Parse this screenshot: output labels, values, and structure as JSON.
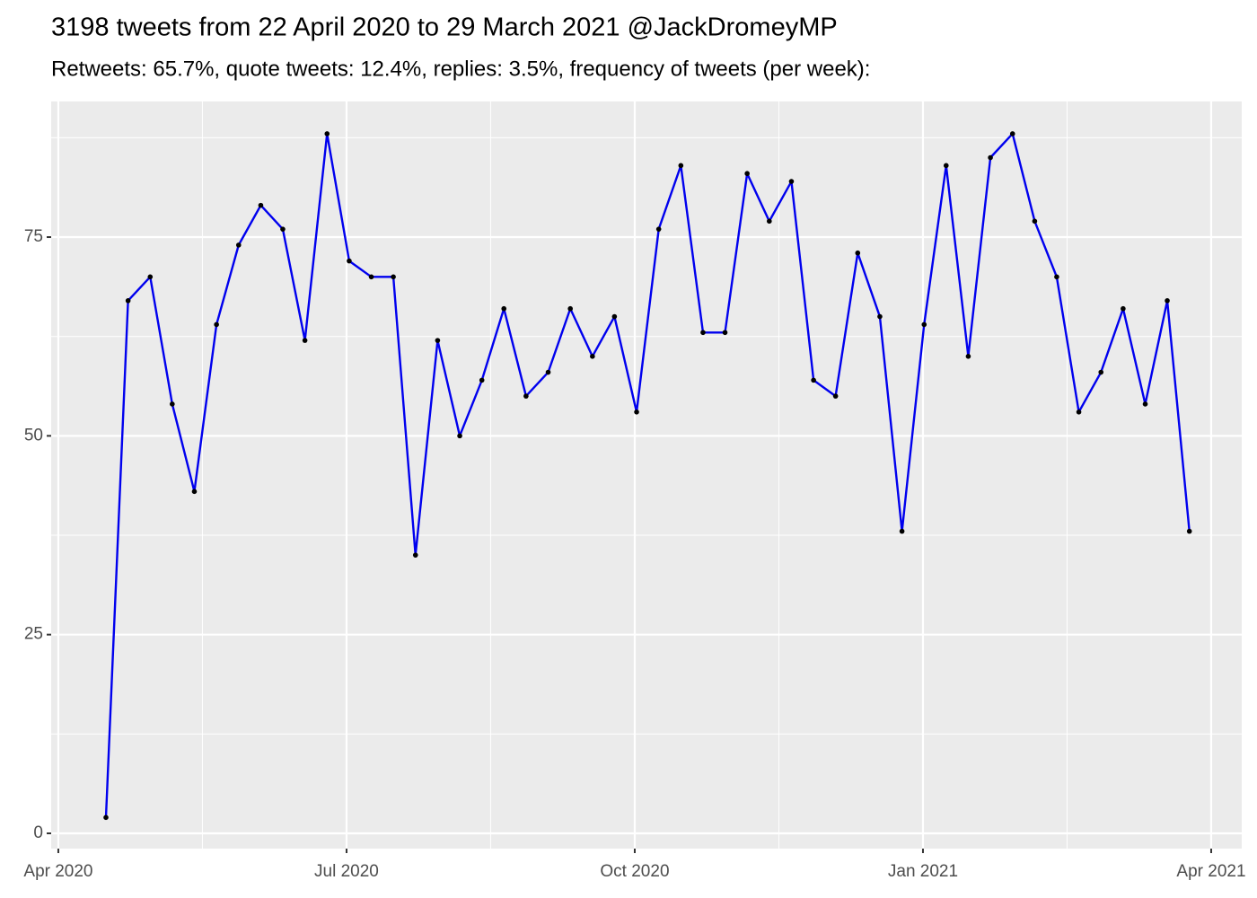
{
  "chart_data": {
    "type": "line",
    "title": "3198 tweets from 22 April 2020 to 29 March 2021 @JackDromeyMP",
    "subtitle": "Retweets: 65.7%, quote tweets: 12.4%, replies: 3.5%, frequency of tweets (per week):",
    "x": [
      2020.2913,
      2020.3105,
      2020.3297,
      2020.3488,
      2020.368,
      2020.3872,
      2020.4064,
      2020.4256,
      2020.4447,
      2020.4639,
      2020.4831,
      2020.5023,
      2020.5215,
      2020.5406,
      2020.5598,
      2020.579,
      2020.5982,
      2020.6174,
      2020.6365,
      2020.6557,
      2020.6749,
      2020.6941,
      2020.7133,
      2020.7324,
      2020.7516,
      2020.7708,
      2020.79,
      2020.8092,
      2020.8283,
      2020.8475,
      2020.8667,
      2020.8859,
      2020.9051,
      2020.9242,
      2020.9434,
      2020.9626,
      2020.9818,
      2021.001,
      2021.0201,
      2021.0393,
      2021.0585,
      2021.0777,
      2021.0969,
      2021.116,
      2021.1352,
      2021.1544,
      2021.1736,
      2021.1928,
      2021.2119,
      2021.2311
    ],
    "series": [
      {
        "color": "#0000ee",
        "point_color": "#000000",
        "values": [
          2,
          67,
          70,
          54,
          43,
          64,
          74,
          79,
          76,
          62,
          88,
          72,
          70,
          70,
          35,
          62,
          50,
          57,
          66,
          55,
          58,
          66,
          60,
          65,
          53,
          76,
          84,
          63,
          63,
          83,
          77,
          82,
          57,
          55,
          73,
          65,
          38,
          64,
          84,
          60,
          85,
          88,
          77,
          70,
          53,
          58,
          66,
          54,
          67,
          38
        ]
      }
    ],
    "xlim": [
      2020.2438,
      2021.2765
    ],
    "xticks": [
      {
        "value": 2020.25,
        "label": "Apr 2020"
      },
      {
        "value": 2020.5,
        "label": "Jul 2020"
      },
      {
        "value": 2020.75,
        "label": "Oct 2020"
      },
      {
        "value": 2021.0,
        "label": "Jan 2021"
      },
      {
        "value": 2021.25,
        "label": "Apr 2021"
      }
    ],
    "ylim": [
      -1.92,
      92.06
    ],
    "yticks": [
      0,
      25,
      50,
      75
    ],
    "grid": true
  }
}
